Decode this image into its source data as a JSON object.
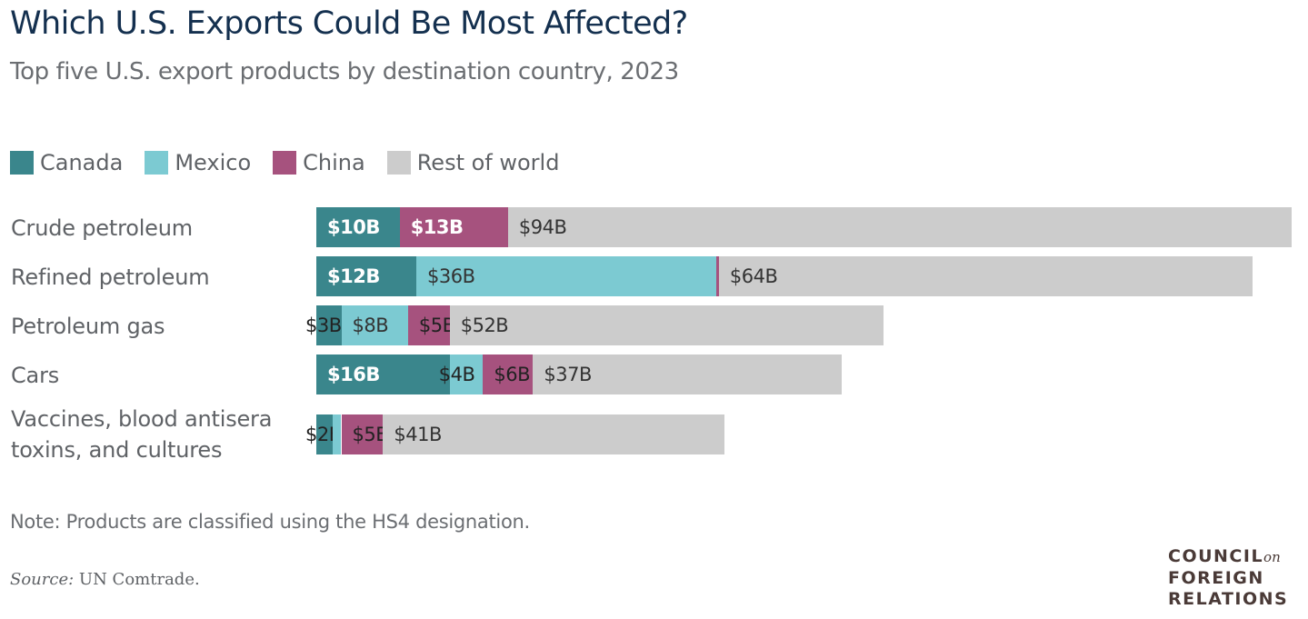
{
  "header": {
    "title": "Which U.S. Exports Could Be Most Affected?",
    "subtitle": "Top five U.S. export products by destination country, 2023"
  },
  "colors": {
    "Canada": "#3a868c",
    "Mexico": "#7ccad2",
    "China": "#a6527e",
    "Rest of world": "#cccccc"
  },
  "chart_data": {
    "type": "bar",
    "orientation": "horizontal",
    "stacked": true,
    "title": "Which U.S. Exports Could Be Most Affected?",
    "subtitle": "Top five U.S. export products by destination country, 2023",
    "xlabel": "",
    "ylabel": "",
    "unit": "$B",
    "legend": [
      "Canada",
      "Mexico",
      "China",
      "Rest of world"
    ],
    "legend_position": "top-left",
    "grid": false,
    "categories": [
      "Crude petroleum",
      "Refined petroleum",
      "Petroleum gas",
      "Cars",
      "Vaccines, blood antisera toxins, and cultures"
    ],
    "series": [
      {
        "name": "Canada",
        "values": [
          10,
          12,
          3,
          16,
          2
        ],
        "labels": [
          "$10B",
          "$12B",
          "$3B",
          "$16B",
          "$2B"
        ]
      },
      {
        "name": "Mexico",
        "values": [
          0,
          36,
          8,
          4,
          1
        ],
        "labels": [
          "",
          "$36B",
          "$8B",
          "$4B",
          ""
        ]
      },
      {
        "name": "China",
        "values": [
          13,
          0.3,
          5,
          6,
          5
        ],
        "labels": [
          "$13B",
          "",
          "$5B",
          "$6B",
          "$5B"
        ]
      },
      {
        "name": "Rest of world",
        "values": [
          94,
          64,
          52,
          37,
          41
        ],
        "labels": [
          "$94B",
          "$64B",
          "$52B",
          "$37B",
          "$41B"
        ]
      }
    ],
    "label_colors": [
      [
        "#ffffff",
        "",
        "#ffffff",
        "#333333"
      ],
      [
        "#ffffff",
        "#333333",
        "",
        "#333333"
      ],
      [
        "#222222",
        "#333333",
        "#222222",
        "#333333"
      ],
      [
        "#ffffff",
        "#222222",
        "#222222",
        "#333333"
      ],
      [
        "#222222",
        "",
        "#222222",
        "#333333"
      ]
    ]
  },
  "footer": {
    "note": "Note: Products are classified using the HS4 designation.",
    "source_label": "Source:",
    "source_text": "UN Comtrade."
  },
  "logo": {
    "line1": "COUNCIL",
    "line1_suffix": "on",
    "line2": "FOREIGN",
    "line3": "RELATIONS"
  }
}
